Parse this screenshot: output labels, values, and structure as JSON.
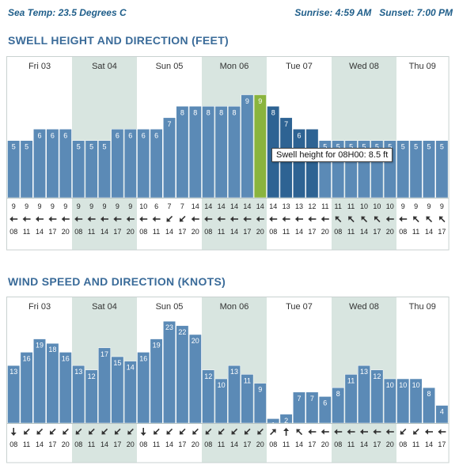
{
  "header": {
    "sea_temp": "Sea Temp: 23.5 Degrees C",
    "sun": "Sunrise: 4:59 AM   Sunset: 7:00 PM"
  },
  "colors": {
    "bar": "#5b8ab6",
    "bar_hover": "#8ab43e",
    "bar_selected": "#2e6393",
    "band_shade": "#d8e5e0",
    "title": "#3a6b99",
    "header": "#1f5e8a"
  },
  "chart_data": [
    {
      "type": "bar",
      "title": "SWELL HEIGHT AND DIRECTION (FEET)",
      "days": [
        "Fri 03",
        "Sat 04",
        "Sun 05",
        "Mon 06",
        "Tue 07",
        "Wed 08",
        "Thu 09"
      ],
      "hours": [
        "08",
        "11",
        "14",
        "17",
        "20",
        "08",
        "11",
        "14",
        "17",
        "20",
        "08",
        "11",
        "14",
        "17",
        "20",
        "08",
        "11",
        "14",
        "17",
        "20",
        "08",
        "11",
        "14",
        "17",
        "20",
        "08",
        "11",
        "14",
        "17",
        "20",
        "08",
        "11",
        "14",
        "17"
      ],
      "values": [
        5,
        5,
        6,
        6,
        6,
        5,
        5,
        5,
        6,
        6,
        6,
        6,
        7,
        8,
        8,
        8,
        8,
        8,
        9,
        9,
        8,
        7,
        6,
        6,
        5,
        5,
        5,
        5,
        5,
        5,
        5,
        5,
        5,
        5
      ],
      "labels": [
        "5",
        "5",
        "6",
        "6",
        "6",
        "5",
        "5",
        "5",
        "6",
        "6",
        "6",
        "6",
        "7",
        "8",
        "8",
        "8",
        "8",
        "8",
        "9",
        "9",
        "8",
        "7",
        "6",
        "",
        "5",
        "5",
        "5",
        "5",
        "5",
        "5",
        "5",
        "5",
        "5",
        "5"
      ],
      "periods": [
        "9",
        "9",
        "9",
        "9",
        "9",
        "9",
        "9",
        "9",
        "9",
        "9",
        "10",
        "6",
        "7",
        "7",
        "14",
        "14",
        "14",
        "14",
        "14",
        "14",
        "14",
        "13",
        "13",
        "12",
        "11",
        "11",
        "11",
        "10",
        "10",
        "10",
        "9",
        "9",
        "9",
        "9"
      ],
      "directions": [
        "W",
        "W",
        "W",
        "W",
        "W",
        "W",
        "W",
        "W",
        "W",
        "W",
        "W",
        "W",
        "SW",
        "SW",
        "W",
        "W",
        "W",
        "W",
        "W",
        "W",
        "W",
        "W",
        "W",
        "W",
        "W",
        "NW",
        "NW",
        "NW",
        "NW",
        "W",
        "W",
        "NW",
        "NW",
        "NW"
      ],
      "hover_index": 19,
      "selected_range": [
        20,
        23
      ],
      "tooltip": "Swell height for 08H00: 8.5 ft",
      "ylim": [
        0,
        11
      ]
    },
    {
      "type": "bar",
      "title": "WIND SPEED AND DIRECTION (KNOTS)",
      "days": [
        "Fri 03",
        "Sat 04",
        "Sun 05",
        "Mon 06",
        "Tue 07",
        "Wed 08",
        "Thu 09"
      ],
      "hours": [
        "08",
        "11",
        "14",
        "17",
        "20",
        "08",
        "11",
        "14",
        "17",
        "20",
        "08",
        "11",
        "14",
        "17",
        "20",
        "08",
        "11",
        "14",
        "17",
        "20",
        "08",
        "11",
        "14",
        "17",
        "20",
        "08",
        "11",
        "14",
        "17",
        "20",
        "08",
        "11",
        "14",
        "17"
      ],
      "values": [
        13,
        16,
        19,
        18,
        16,
        13,
        12,
        17,
        15,
        14,
        16,
        19,
        23,
        22,
        20,
        12,
        10,
        13,
        11,
        9,
        1,
        2,
        7,
        7,
        6,
        8,
        11,
        13,
        12,
        10,
        10,
        10,
        8,
        4
      ],
      "directions": [
        "S",
        "SW",
        "SW",
        "SW",
        "SW",
        "SW",
        "SW",
        "SW",
        "SW",
        "SW",
        "S",
        "SW",
        "SW",
        "SW",
        "SW",
        "SW",
        "SW",
        "SW",
        "SW",
        "SW",
        "NE",
        "N",
        "NW",
        "W",
        "W",
        "W",
        "W",
        "W",
        "W",
        "W",
        "SW",
        "SW",
        "W",
        "W"
      ],
      "ylim": [
        0,
        25
      ]
    }
  ]
}
